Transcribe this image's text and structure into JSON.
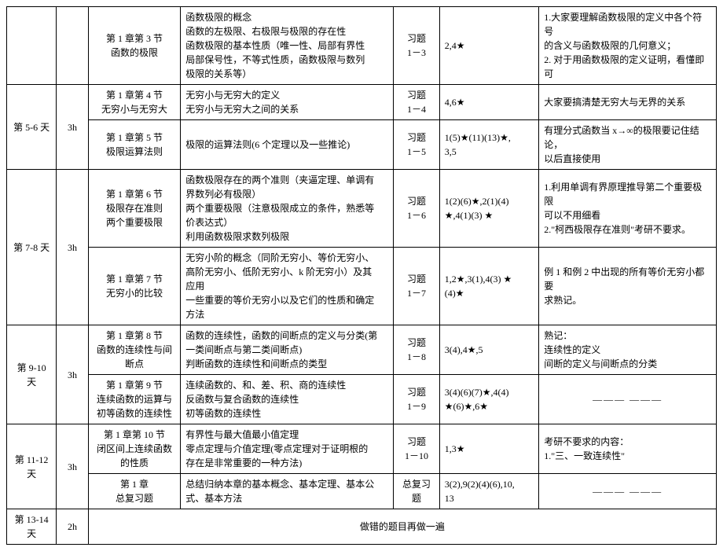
{
  "rows": {
    "r1": {
      "chap": "第 1 章第 3 节\n函数的极限",
      "cont": "函数极限的概念\n函数的左极限、右极限与极限的存在性\n函数极限的基本性质（唯一性、局部有界性\n局部保号性，不等式性质，函数极限与数列\n极限的关系等）",
      "ex": "习题\n1－3",
      "star": "2,4★",
      "note": "1.大家要理解函数极限的定义中各个符号\n的含义与函数极限的几何意义；\n2. 对于用函数极限的定义证明，看懂即可"
    },
    "r2": {
      "day": "第 5-6 天",
      "hour": "3h",
      "chap": "第 1 章第 4 节\n无穷小与无穷大",
      "cont": "无穷小与无穷大的定义\n无穷小与无穷大之间的关系",
      "ex": "习题\n1－4",
      "star": "4,6★",
      "note": "大家要搞清楚无穷大与无界的关系"
    },
    "r3": {
      "chap": "第 1 章第 5 节\n极限运算法则",
      "cont": "极限的运算法则(6 个定理以及一些推论)",
      "ex": "习题\n1－5",
      "star": "1(5)★(11)(13)★,\n3,5",
      "note": "有理分式函数当 x→∞的极限要记住结论，\n以后直接使用"
    },
    "r4": {
      "day": "第 7-8 天",
      "hour": "3h",
      "chap": "第 1 章第 6 节\n极限存在准则\n两个重要极限",
      "cont": "函数极限存在的两个准则（夹逼定理、单调有\n界数列必有极限）\n两个重要极限（注意极限成立的条件，熟悉等\n价表达式）\n利用函数极限求数列极限",
      "ex": "习题\n1－6",
      "star": "1(2)(6)★,2(1)(4)\n★,4(1)(3) ★",
      "note": "1.利用单调有界原理推导第二个重要极限\n可以不用细看\n2.\"柯西极限存在准则\"考研不要求。"
    },
    "r5": {
      "chap": "第 1 章第 7 节\n无穷小的比较",
      "cont": "无穷小阶的概念（同阶无穷小、等价无穷小、\n高阶无穷小、低阶无穷小、k 阶无穷小）及其\n应用\n一些重要的等价无穷小以及它们的性质和确定\n方法",
      "ex": "习题\n1－7",
      "star": "1,2★,3(1),4(3) ★\n(4)★",
      "note": "例 1 和例 2 中出现的所有等价无穷小都要\n求熟记。"
    },
    "r6": {
      "day": "第 9-10 天",
      "hour": "3h",
      "chap": "第 1 章第 8 节\n函数的连续性与间\n断点",
      "cont": "函数的连续性，函数的间断点的定义与分类(第\n一类间断点与第二类间断点)\n判断函数的连续性和间断点的类型",
      "ex": "习题\n1－8",
      "star": "3(4),4★,5",
      "note": "熟记：\n连续性的定义\n间断的定义与间断点的分类"
    },
    "r7": {
      "chap": "第 1 章第 9 节\n连续函数的运算与\n初等函数的连续性",
      "cont": "连续函数的、和、差、积、商的连续性\n反函数与复合函数的连续性\n初等函数的连续性",
      "ex": "习题\n1－9",
      "star": "3(4)(6)(7)★,4(4)\n★(6)★,6★",
      "note": "——— ———"
    },
    "r8": {
      "day": "第 11-12\n天",
      "hour": "3h",
      "chap": "第 1 章第 10 节\n闭区间上连续函数\n的性质",
      "cont": "有界性与最大值最小值定理\n零点定理与介值定理(零点定理对于证明根的\n存在是非常重要的一种方法)",
      "ex": "习题\n1－10",
      "star": "1,3★",
      "note": "考研不要求的内容：\n1.\"三、一致连续性\""
    },
    "r9": {
      "chap": "第 1 章\n总复习题",
      "cont": "总结归纳本章的基本概念、基本定理、基本公\n式、基本方法",
      "ex": "总复习题",
      "star": "3(2),9(2)(4)(6),10,\n13",
      "note": "——— ———"
    },
    "r10": {
      "day": "第 13-14\n天",
      "hour": "2h",
      "merged": "做错的题目再做一遍"
    }
  }
}
